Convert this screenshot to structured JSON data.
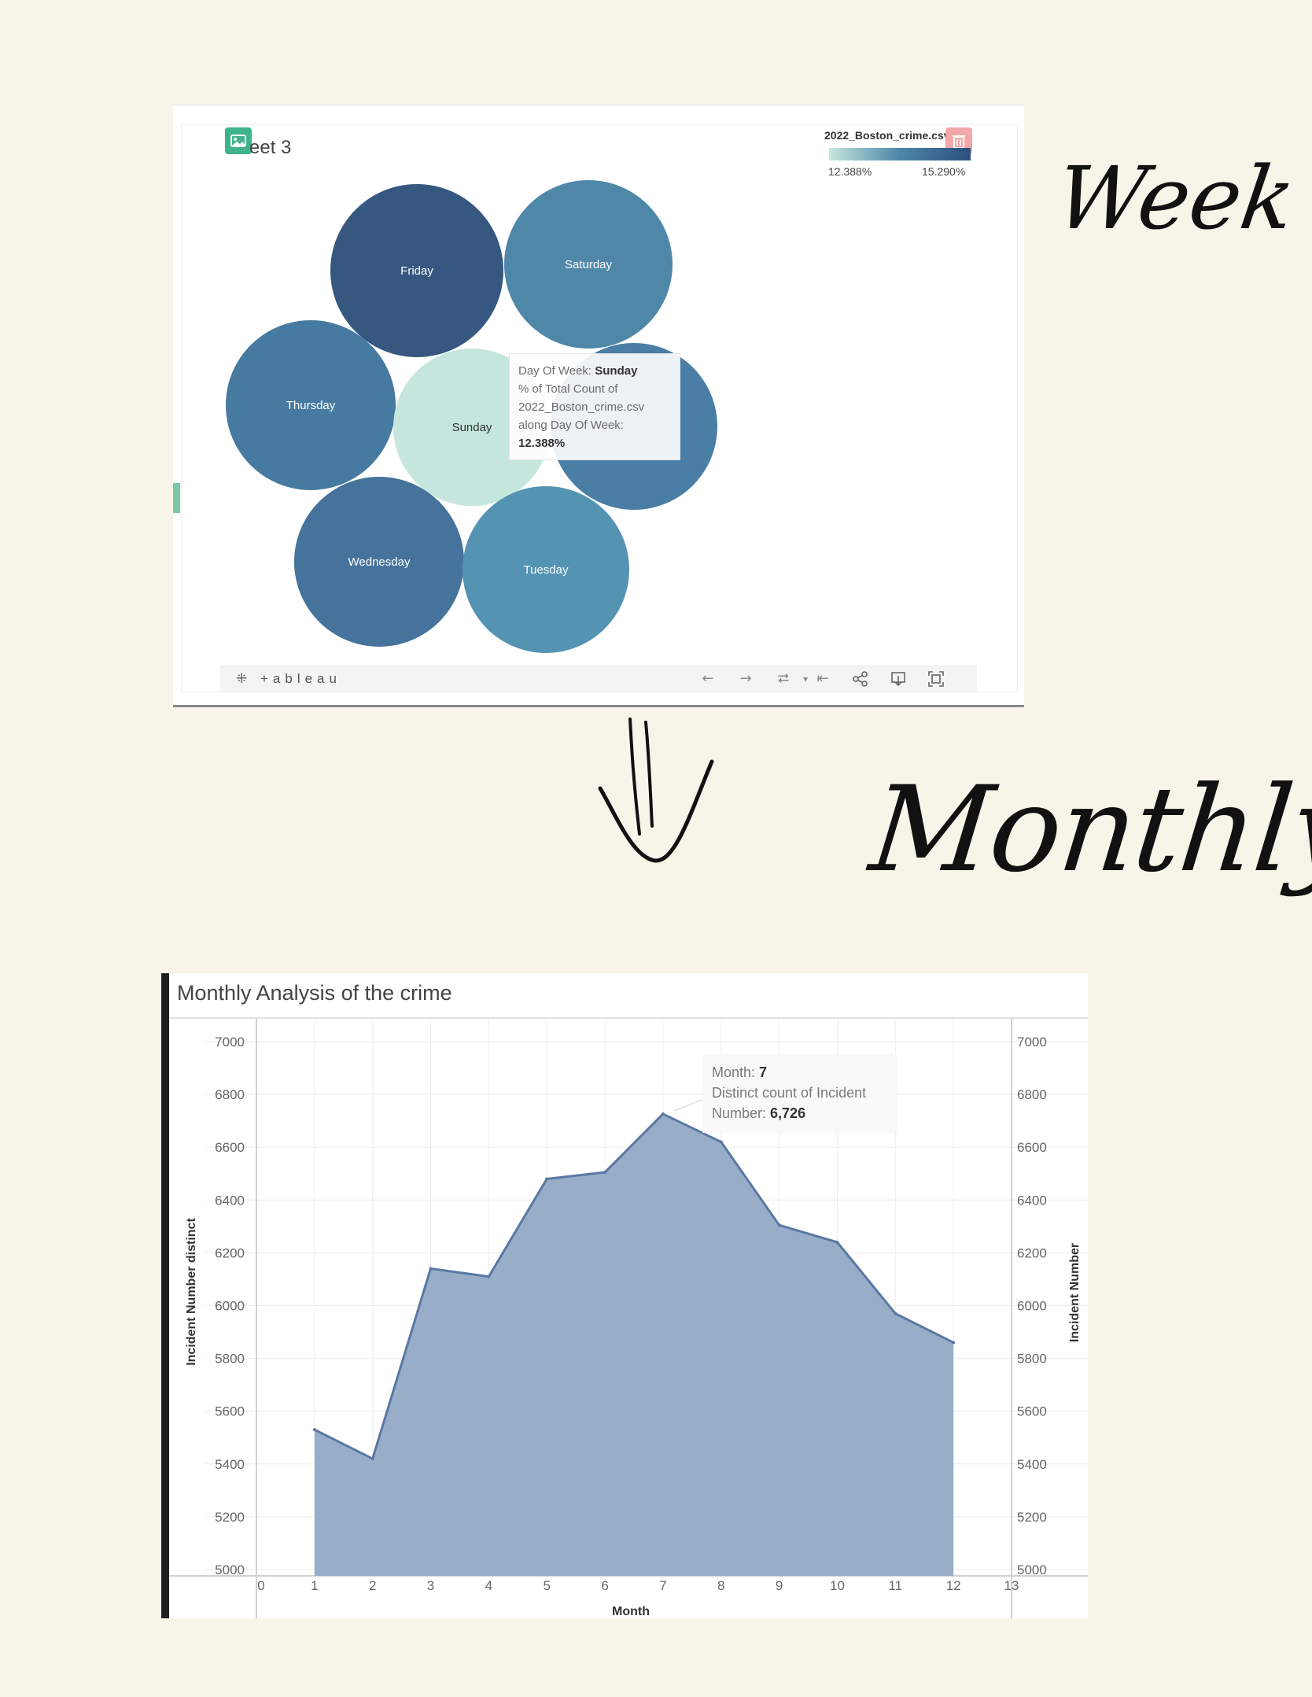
{
  "week_sheet": {
    "sheet_title": "eet 3",
    "legend": {
      "title": "2022_Boston_crime.csv",
      "min_label": "12.388%",
      "max_label": "15.290%",
      "min_color": "#c6e6dd",
      "max_color": "#2d4f7e"
    },
    "tooltip": {
      "l1_label": "Day Of Week: ",
      "l1_value": "Sunday",
      "l2": "% of Total Count of",
      "l3": "2022_Boston_crime.csv",
      "l4": "along Day Of Week:",
      "l5_value": "12.388%"
    },
    "toolbar": {
      "brand": "+ableau",
      "icons": [
        "undo-icon",
        "redo-icon",
        "revert-icon",
        "dropdown-icon",
        "reset-icon",
        "share-icon",
        "download-icon",
        "fullscreen-icon"
      ]
    }
  },
  "handwriting": {
    "week": "Week",
    "monthly": "Monthly"
  },
  "chart_data": [
    {
      "type": "bubble",
      "title": "",
      "encoding": "% of Total Count of 2022_Boston_crime.csv along Day Of Week",
      "color_range": [
        "12.388%",
        "15.290%"
      ],
      "bubbles": [
        {
          "label": "Friday",
          "color": "#365780"
        },
        {
          "label": "Saturday",
          "color": "#4f87a9"
        },
        {
          "label": "Thursday",
          "color": "#477aa0"
        },
        {
          "label": "Sunday",
          "color": "#c6e6dd",
          "value_pct": 12.388
        },
        {
          "label": "",
          "color": "#4a7ea4"
        },
        {
          "label": "Wednesday",
          "color": "#46739b"
        },
        {
          "label": "Tuesday",
          "color": "#5593b3"
        }
      ]
    },
    {
      "type": "area",
      "title": "Monthly Analysis  of the crime",
      "xlabel": "Month",
      "ylabel": "Incident Number distinct",
      "ylabel_right": "Incident Number",
      "x": [
        1,
        2,
        3,
        4,
        5,
        6,
        7,
        8,
        9,
        10,
        11,
        12
      ],
      "values": [
        5530,
        5420,
        6140,
        6110,
        6480,
        6505,
        6726,
        6620,
        6305,
        6240,
        5970,
        5860
      ],
      "xlim": [
        0,
        13
      ],
      "ylim": [
        5000,
        7000
      ],
      "x_ticks": [
        0,
        1,
        2,
        3,
        4,
        5,
        6,
        7,
        8,
        9,
        10,
        11,
        12,
        13
      ],
      "y_ticks": [
        5000,
        5200,
        5400,
        5600,
        5800,
        6000,
        6200,
        6400,
        6600,
        6800,
        7000
      ],
      "grid": true,
      "fill_color": "#98aec8",
      "line_color": "#5a78a3",
      "tooltip": {
        "month_label": "Month: ",
        "month_value": "7",
        "count_label_1": "Distinct count of Incident",
        "count_label_2": "Number: ",
        "count_value": "6,726"
      }
    }
  ]
}
